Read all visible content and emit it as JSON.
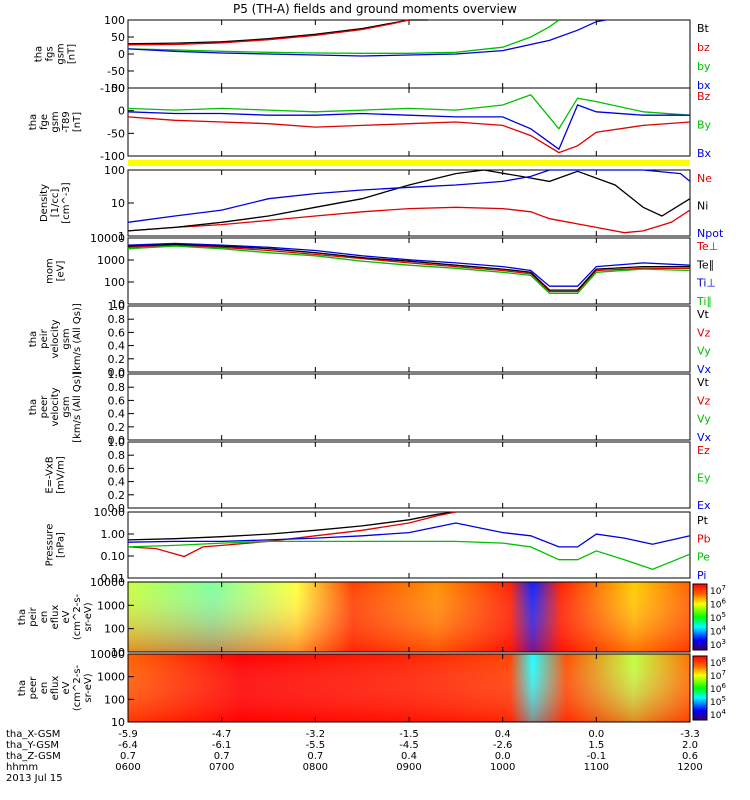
{
  "title": "P5 (TH-A) fields and ground moments overview",
  "chart_data": {
    "type": "line",
    "x_ticks": [
      "0600",
      "0700",
      "0800",
      "0900",
      "1000",
      "1100",
      "1200"
    ],
    "panels": [
      {
        "id": "fgs",
        "ylabel": [
          "tha",
          "fgs",
          "gsm",
          "[nT]"
        ],
        "ylim": [
          -100,
          100
        ],
        "yticks": [
          "100",
          "50",
          "0",
          "-50",
          "-100"
        ],
        "legend": [
          "Bt",
          "bz",
          "by",
          "bx"
        ],
        "series": [
          {
            "name": "Bt",
            "color": "#000000",
            "x": [
              0,
              0.5,
              1,
              1.5,
              2,
              2.5,
              2.8,
              3.0,
              3.2
            ],
            "y": [
              30,
              32,
              36,
              45,
              58,
              75,
              90,
              100,
              100
            ]
          },
          {
            "name": "bz",
            "color": "#e00000",
            "x": [
              0,
              0.5,
              1,
              1.5,
              2,
              2.5,
              2.8,
              3.0
            ],
            "y": [
              27,
              28,
              33,
              42,
              55,
              72,
              88,
              100
            ]
          },
          {
            "name": "by",
            "color": "#00c000",
            "x": [
              0,
              0.5,
              1,
              1.5,
              2,
              2.5,
              3,
              3.5,
              4,
              4.3,
              4.5,
              4.6,
              4.6
            ],
            "y": [
              15,
              12,
              8,
              5,
              3,
              2,
              2,
              5,
              20,
              50,
              80,
              100,
              100
            ]
          },
          {
            "name": "bx",
            "color": "#0000e0",
            "x": [
              0,
              0.5,
              1,
              1.5,
              2,
              2.5,
              3,
              3.5,
              4,
              4.5,
              4.8,
              5.0,
              5.1
            ],
            "y": [
              15,
              8,
              3,
              0,
              -3,
              -6,
              -3,
              0,
              10,
              40,
              70,
              95,
              100
            ]
          }
        ]
      },
      {
        "id": "fgm",
        "ylabel": [
          "tha",
          "fge",
          "gsm",
          "-T89",
          "[nT]"
        ],
        "ylim": [
          -120,
          80
        ],
        "yticks": [
          "50",
          "0",
          "-50",
          "-100"
        ],
        "legend": [
          "Bz",
          "By",
          "Bx"
        ],
        "series": [
          {
            "name": "Bz",
            "color": "#e00000",
            "x": [
              0,
              0.5,
              1,
              1.5,
              2,
              2.5,
              3,
              3.5,
              4,
              4.3,
              4.6,
              4.8,
              5,
              5.5,
              6
            ],
            "y": [
              -5,
              -15,
              -20,
              -25,
              -35,
              -30,
              -25,
              -20,
              -30,
              -60,
              -110,
              -90,
              -50,
              -30,
              -20
            ]
          },
          {
            "name": "By",
            "color": "#00c000",
            "x": [
              0,
              0.5,
              1,
              1.5,
              2,
              2.5,
              3,
              3.5,
              4,
              4.3,
              4.6,
              4.8,
              5,
              5.5,
              6
            ],
            "y": [
              20,
              15,
              20,
              15,
              10,
              15,
              20,
              15,
              30,
              60,
              -40,
              50,
              40,
              10,
              0
            ]
          },
          {
            "name": "Bx",
            "color": "#0000e0",
            "x": [
              0,
              0.5,
              1,
              1.5,
              2,
              2.5,
              3,
              3.5,
              4,
              4.3,
              4.6,
              4.8,
              5,
              5.5,
              6
            ],
            "y": [
              10,
              5,
              5,
              0,
              0,
              5,
              0,
              -5,
              -5,
              -40,
              -100,
              30,
              10,
              0,
              0
            ]
          }
        ]
      },
      {
        "id": "density",
        "ylabel": [
          "Density",
          "[1/cc]",
          "[cm^-3]"
        ],
        "ylog": true,
        "ylim": [
          1,
          200
        ],
        "yticks": [
          "100",
          "10",
          "1"
        ],
        "legend": [
          "Ne",
          "Ni",
          "Npot"
        ],
        "series": [
          {
            "name": "Ne",
            "color": "#e00000",
            "x": [
              0,
              0.5,
              1,
              1.5,
              2,
              2.5,
              3,
              3.5,
              4,
              4.3,
              4.5,
              5,
              5.3,
              5.5,
              5.8,
              6
            ],
            "y": [
              1.5,
              2,
              2.5,
              3.5,
              5,
              7,
              9,
              10,
              9,
              7,
              4,
              2,
              1.3,
              1.5,
              3,
              8
            ]
          },
          {
            "name": "Ni",
            "color": "#000000",
            "x": [
              0,
              0.5,
              1,
              1.5,
              2,
              2.5,
              3,
              3.5,
              3.8,
              4.2,
              4.5,
              4.8,
              5.2,
              5.5,
              5.7,
              6
            ],
            "y": [
              1.5,
              2,
              3,
              5,
              10,
              20,
              60,
              150,
              200,
              120,
              80,
              180,
              60,
              10,
              5,
              20
            ]
          },
          {
            "name": "Npot",
            "color": "#0000e0",
            "x": [
              0,
              0.5,
              1,
              1.5,
              2,
              2.5,
              3,
              3.5,
              4,
              4.3,
              4.5,
              5,
              5.5,
              5.9,
              6
            ],
            "y": [
              3,
              5,
              8,
              20,
              30,
              40,
              50,
              60,
              80,
              120,
              200,
              200,
              200,
              150,
              80
            ]
          }
        ]
      },
      {
        "id": "temp",
        "ylabel": [
          "mom",
          "[eV]"
        ],
        "ylog": true,
        "ylim": [
          2,
          10000
        ],
        "yticks": [
          "10000",
          "1000",
          "100",
          "10"
        ],
        "legend": [
          "Te⊥",
          "Te∥",
          "Ti⊥",
          "Ti∥"
        ],
        "series": [
          {
            "name": "Te⊥",
            "color": "#e00000",
            "x": [
              0,
              0.5,
              1,
              1.5,
              2,
              2.5,
              3,
              3.5,
              4,
              4.3,
              4.5,
              4.8,
              5,
              5.5,
              6
            ],
            "y": [
              3000,
              4000,
              3000,
              2000,
              1200,
              700,
              400,
              250,
              150,
              100,
              10,
              10,
              150,
              200,
              200
            ]
          },
          {
            "name": "Te∥",
            "color": "#000000",
            "x": [
              0,
              0.5,
              1,
              1.5,
              2,
              2.5,
              3,
              3.5,
              4,
              4.3,
              4.5,
              4.8,
              5,
              5.5,
              6
            ],
            "y": [
              3500,
              4500,
              3500,
              2500,
              1500,
              800,
              500,
              300,
              180,
              120,
              12,
              12,
              180,
              250,
              250
            ]
          },
          {
            "name": "Ti⊥",
            "color": "#0000e0",
            "x": [
              0,
              0.5,
              1,
              1.5,
              2,
              2.5,
              3,
              3.5,
              4,
              4.3,
              4.5,
              4.8,
              5,
              5.5,
              6
            ],
            "y": [
              4000,
              5000,
              4000,
              3000,
              2000,
              1000,
              600,
              400,
              250,
              150,
              20,
              20,
              250,
              400,
              300
            ]
          },
          {
            "name": "Ti∥",
            "color": "#00c000",
            "x": [
              0,
              0.5,
              1,
              1.5,
              2,
              2.5,
              3,
              3.5,
              4,
              4.3,
              4.5,
              4.8,
              5,
              5.5,
              6
            ],
            "y": [
              2500,
              3500,
              2500,
              1500,
              1000,
              500,
              300,
              200,
              120,
              80,
              8,
              8,
              120,
              180,
              150
            ]
          }
        ]
      },
      {
        "id": "vi",
        "ylabel": [
          "tha",
          "peir",
          "velocity",
          "gsm",
          "[km/s (All Qs)]"
        ],
        "ylim": [
          0,
          1
        ],
        "yticks": [
          "1.0",
          "0.8",
          "0.6",
          "0.4",
          "0.2",
          "0.0"
        ],
        "legend": [
          "Vt",
          "Vz",
          "Vy",
          "Vx"
        ],
        "series": []
      },
      {
        "id": "ve",
        "ylabel": [
          "tha",
          "peer",
          "velocity",
          "gsm",
          "[km/s (All Qs)]"
        ],
        "ylim": [
          0,
          1
        ],
        "yticks": [
          "1.0",
          "0.8",
          "0.6",
          "0.4",
          "0.2",
          "0.0"
        ],
        "legend": [
          "Vt",
          "Vz",
          "Vy",
          "Vx"
        ],
        "series": []
      },
      {
        "id": "efield",
        "ylabel": [
          "E=-VxB",
          "[mV/m]"
        ],
        "ylim": [
          0,
          1
        ],
        "yticks": [
          "1.0",
          "0.8",
          "0.6",
          "0.4",
          "0.2",
          "0.0"
        ],
        "legend": [
          "Ez",
          "Ey",
          "Ex"
        ],
        "series": []
      },
      {
        "id": "pressure",
        "ylabel": [
          "Pressure",
          "[nPa]"
        ],
        "ylog": true,
        "ylim": [
          0.01,
          40
        ],
        "yticks": [
          "10.00",
          "1.00",
          "0.10",
          "0.01"
        ],
        "legend": [
          "Pt",
          "Pb",
          "Pe",
          "Pi"
        ],
        "series": [
          {
            "name": "Pt",
            "color": "#000000",
            "x": [
              0,
              0.5,
              1,
              1.5,
              2,
              2.5,
              3,
              3.3,
              3.5
            ],
            "y": [
              1.2,
              1.4,
              1.8,
              2.5,
              4,
              7,
              15,
              30,
              40
            ]
          },
          {
            "name": "Pb",
            "color": "#e00000",
            "x": [
              0,
              0.3,
              0.6,
              0.8,
              1,
              1.5,
              2,
              2.5,
              3,
              3.3,
              3.5
            ],
            "y": [
              0.5,
              0.4,
              0.15,
              0.5,
              0.6,
              1,
              2,
              4,
              10,
              25,
              40
            ]
          },
          {
            "name": "Pe",
            "color": "#00c000",
            "x": [
              0,
              0.5,
              1,
              1.5,
              2,
              2.5,
              3,
              3.5,
              4,
              4.3,
              4.6,
              4.8,
              5,
              5.3,
              5.6,
              6
            ],
            "y": [
              0.5,
              0.6,
              0.8,
              1,
              1,
              1,
              1,
              1,
              0.8,
              0.5,
              0.1,
              0.1,
              0.3,
              0.1,
              0.03,
              0.2
            ]
          },
          {
            "name": "Pi",
            "color": "#0000e0",
            "x": [
              0,
              0.5,
              1,
              1.5,
              2,
              2.5,
              3,
              3.5,
              4,
              4.3,
              4.6,
              4.8,
              5,
              5.3,
              5.6,
              6
            ],
            "y": [
              0.9,
              1,
              1,
              1.2,
              1.5,
              2,
              3,
              10,
              3,
              2,
              0.5,
              0.5,
              2.5,
              1.5,
              0.7,
              2
            ]
          }
        ]
      },
      {
        "id": "ion_spec",
        "type": "heatmap",
        "ylabel": [
          "tha",
          "peir",
          "en",
          "eflux",
          "eV",
          "(cm^2-s-",
          "sr-eV)"
        ],
        "yticks": [
          "10000",
          "1000",
          "100",
          "10"
        ],
        "colorbar_ticks": [
          "10^7",
          "10^6",
          "10^5",
          "10^4",
          "10^3"
        ],
        "colorbar_exp": [
          "7",
          "6",
          "5",
          "4",
          "3"
        ]
      },
      {
        "id": "elec_spec",
        "type": "heatmap",
        "ylabel": [
          "tha",
          "peer",
          "en",
          "eflux",
          "eV",
          "(cm^2-s-",
          "sr-eV)"
        ],
        "yticks": [
          "10000",
          "1000",
          "100",
          "10"
        ],
        "colorbar_ticks": [
          "10^8",
          "10^7",
          "10^6",
          "10^5",
          "10^4"
        ],
        "colorbar_exp": [
          "8",
          "7",
          "6",
          "5",
          "4"
        ]
      }
    ],
    "ephemeris": {
      "labels": [
        "tha_X-GSM",
        "tha_Y-GSM",
        "tha_Z-GSM",
        "hhmm",
        "2013 Jul 15"
      ],
      "rows": [
        [
          "-5.9",
          "-4.7",
          "-3.2",
          "-1.5",
          "0.4",
          "0.0",
          "-3.3"
        ],
        [
          "-6.4",
          "-6.1",
          "-5.5",
          "-4.5",
          "-2.6",
          "1.5",
          "2.0"
        ],
        [
          "0.7",
          "0.7",
          "0.7",
          "0.4",
          "0.0",
          "-0.1",
          "0.6"
        ],
        [
          "0600",
          "0700",
          "0800",
          "0900",
          "1000",
          "1100",
          "1200"
        ]
      ]
    }
  }
}
